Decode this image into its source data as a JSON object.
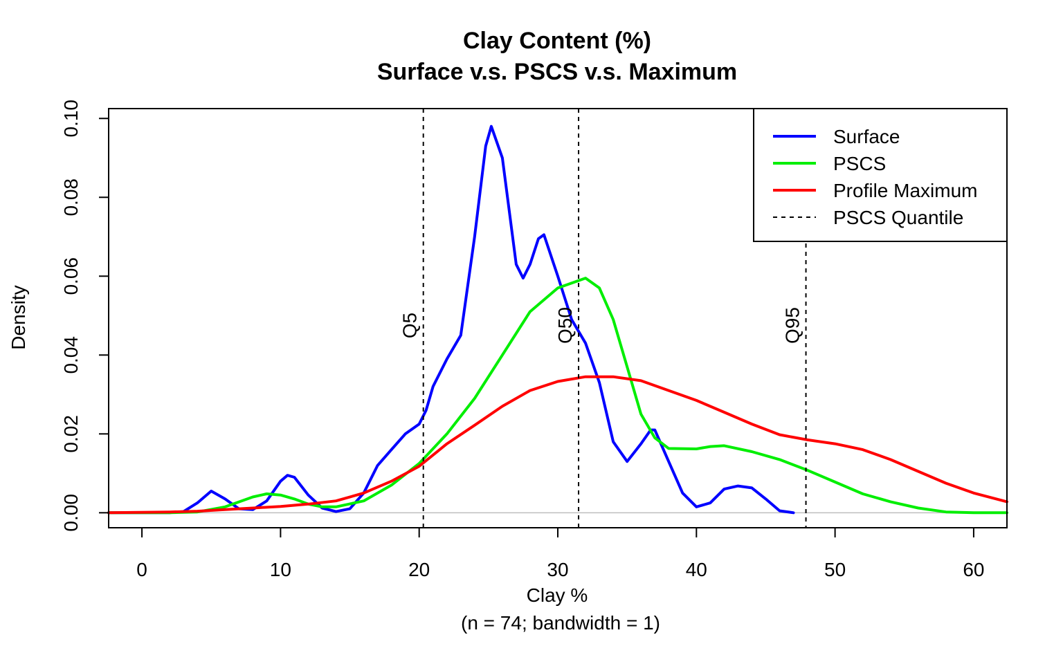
{
  "chart_data": {
    "type": "line",
    "title": "Clay Content (%)",
    "subtitle": "Surface v.s. PSCS v.s. Maximum",
    "xlabel": "Clay %",
    "xlabel_note": "(n = 74; bandwidth = 1)",
    "ylabel": "Density",
    "xlim": [
      -2.4,
      62.4
    ],
    "ylim": [
      -0.0038,
      0.1025
    ],
    "x_ticks": [
      0,
      10,
      20,
      30,
      40,
      50,
      60
    ],
    "y_ticks": [
      0.0,
      0.02,
      0.04,
      0.06,
      0.08,
      0.1
    ],
    "y_tick_labels": [
      "0.00",
      "0.02",
      "0.04",
      "0.06",
      "0.08",
      "0.10"
    ],
    "baseline": 0,
    "legend_position": "top-right",
    "colors": {
      "surface": "#0000ff",
      "pscs": "#00ee00",
      "maximum": "#ff0000",
      "quantile": "#000000",
      "baseline": "#bebebe"
    },
    "series": [
      {
        "name": "Surface",
        "color": "#0000ff",
        "points": [
          [
            -2.4,
            0
          ],
          [
            2,
            0
          ],
          [
            3,
            0.0003
          ],
          [
            4,
            0.0025
          ],
          [
            5,
            0.0055
          ],
          [
            6,
            0.0035
          ],
          [
            7,
            0.001
          ],
          [
            8,
            0.0008
          ],
          [
            9,
            0.003
          ],
          [
            10,
            0.008
          ],
          [
            10.5,
            0.0095
          ],
          [
            11,
            0.009
          ],
          [
            12,
            0.0045
          ],
          [
            13,
            0.0012
          ],
          [
            14,
            0.0003
          ],
          [
            15,
            0.001
          ],
          [
            16,
            0.005
          ],
          [
            17,
            0.012
          ],
          [
            18,
            0.016
          ],
          [
            19,
            0.02
          ],
          [
            20,
            0.0225
          ],
          [
            20.5,
            0.026
          ],
          [
            21,
            0.032
          ],
          [
            22,
            0.039
          ],
          [
            23,
            0.045
          ],
          [
            24,
            0.07
          ],
          [
            24.8,
            0.093
          ],
          [
            25.2,
            0.098
          ],
          [
            26,
            0.09
          ],
          [
            27,
            0.063
          ],
          [
            27.5,
            0.0595
          ],
          [
            28,
            0.063
          ],
          [
            28.6,
            0.0695
          ],
          [
            29,
            0.0705
          ],
          [
            30,
            0.06
          ],
          [
            31,
            0.049
          ],
          [
            32,
            0.043
          ],
          [
            33,
            0.033
          ],
          [
            34,
            0.018
          ],
          [
            35,
            0.013
          ],
          [
            36,
            0.0175
          ],
          [
            36.7,
            0.021
          ],
          [
            37,
            0.021
          ],
          [
            38,
            0.013
          ],
          [
            39,
            0.005
          ],
          [
            40,
            0.0015
          ],
          [
            41,
            0.0025
          ],
          [
            42,
            0.006
          ],
          [
            43,
            0.0068
          ],
          [
            44,
            0.0063
          ],
          [
            45,
            0.0035
          ],
          [
            46,
            0.0005
          ],
          [
            47,
            0
          ]
        ]
      },
      {
        "name": "PSCS",
        "color": "#00ee00",
        "points": [
          [
            -2.4,
            0
          ],
          [
            2,
            0
          ],
          [
            4,
            0.0002
          ],
          [
            6,
            0.0015
          ],
          [
            8,
            0.004
          ],
          [
            9,
            0.0048
          ],
          [
            10,
            0.0045
          ],
          [
            11,
            0.0035
          ],
          [
            12,
            0.0022
          ],
          [
            13,
            0.0015
          ],
          [
            14,
            0.0015
          ],
          [
            16,
            0.003
          ],
          [
            18,
            0.007
          ],
          [
            20,
            0.0125
          ],
          [
            22,
            0.02
          ],
          [
            24,
            0.029
          ],
          [
            26,
            0.04
          ],
          [
            28,
            0.051
          ],
          [
            30,
            0.057
          ],
          [
            32,
            0.0595
          ],
          [
            33,
            0.057
          ],
          [
            34,
            0.049
          ],
          [
            35,
            0.037
          ],
          [
            36,
            0.025
          ],
          [
            37,
            0.019
          ],
          [
            38,
            0.0163
          ],
          [
            40,
            0.0162
          ],
          [
            41,
            0.0168
          ],
          [
            42,
            0.017
          ],
          [
            44,
            0.0155
          ],
          [
            46,
            0.0135
          ],
          [
            48,
            0.0108
          ],
          [
            50,
            0.0078
          ],
          [
            52,
            0.0048
          ],
          [
            54,
            0.0028
          ],
          [
            56,
            0.0012
          ],
          [
            58,
            0.0002
          ],
          [
            60,
            0
          ],
          [
            62.4,
            0
          ]
        ]
      },
      {
        "name": "Profile Maximum",
        "color": "#ff0000",
        "points": [
          [
            -2.4,
            0
          ],
          [
            2,
            0.0002
          ],
          [
            4,
            0.0004
          ],
          [
            6,
            0.0008
          ],
          [
            8,
            0.0012
          ],
          [
            10,
            0.0016
          ],
          [
            12,
            0.0022
          ],
          [
            14,
            0.003
          ],
          [
            16,
            0.005
          ],
          [
            18,
            0.008
          ],
          [
            20,
            0.0118
          ],
          [
            22,
            0.0175
          ],
          [
            24,
            0.0222
          ],
          [
            26,
            0.027
          ],
          [
            28,
            0.031
          ],
          [
            30,
            0.0333
          ],
          [
            32,
            0.0345
          ],
          [
            34,
            0.0345
          ],
          [
            36,
            0.0335
          ],
          [
            38,
            0.031
          ],
          [
            40,
            0.0285
          ],
          [
            42,
            0.0255
          ],
          [
            44,
            0.0225
          ],
          [
            46,
            0.0198
          ],
          [
            48,
            0.0185
          ],
          [
            50,
            0.0175
          ],
          [
            52,
            0.016
          ],
          [
            54,
            0.0135
          ],
          [
            56,
            0.0105
          ],
          [
            58,
            0.0075
          ],
          [
            60,
            0.005
          ],
          [
            62.4,
            0.0028
          ]
        ]
      }
    ],
    "quantiles": [
      {
        "label": "Q5",
        "x": 20.3
      },
      {
        "label": "Q50",
        "x": 31.5
      },
      {
        "label": "Q95",
        "x": 47.9
      }
    ],
    "legend": [
      {
        "label": "Surface",
        "style": "solid",
        "color": "#0000ff"
      },
      {
        "label": "PSCS",
        "style": "solid",
        "color": "#00ee00"
      },
      {
        "label": "Profile Maximum",
        "style": "solid",
        "color": "#ff0000"
      },
      {
        "label": "PSCS Quantile",
        "style": "dashed",
        "color": "#000000"
      }
    ]
  }
}
